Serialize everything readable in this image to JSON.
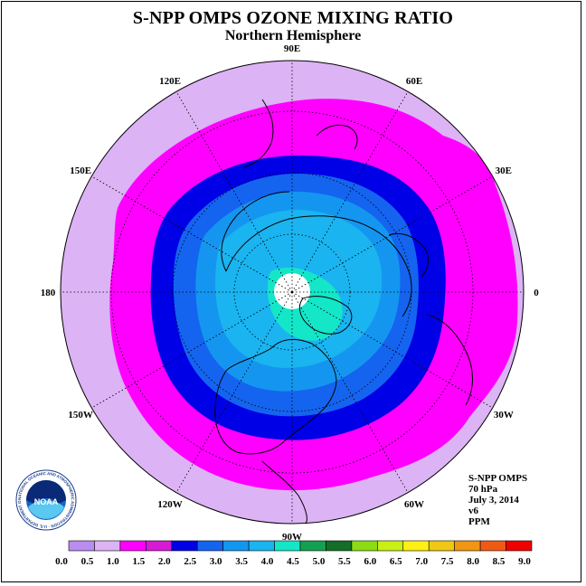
{
  "title": "S-NPP OMPS OZONE MIXING RATIO",
  "subtitle": "Northern Hemisphere",
  "longitude_labels": [
    {
      "text": "90E",
      "lon": 90
    },
    {
      "text": "60E",
      "lon": 60
    },
    {
      "text": "30E",
      "lon": 30
    },
    {
      "text": "0",
      "lon": 0
    },
    {
      "text": "30W",
      "lon": -30
    },
    {
      "text": "60W",
      "lon": -60
    },
    {
      "text": "90W",
      "lon": -90
    },
    {
      "text": "120W",
      "lon": -120
    },
    {
      "text": "150W",
      "lon": -150
    },
    {
      "text": "180",
      "lon": 180
    },
    {
      "text": "150E",
      "lon": 150
    },
    {
      "text": "120E",
      "lon": 120
    }
  ],
  "info": {
    "instrument": "S-NPP OMPS",
    "level": "70 hPa",
    "date": "July 3, 2014",
    "version": "v6",
    "units": "PPM"
  },
  "logo": {
    "text": "NOAA",
    "ring_text": "NATIONAL OCEANIC AND ATMOSPHERIC ADMINISTRATION · U.S. DEPARTMENT OF COMMERCE"
  },
  "colorbar": {
    "labels": [
      "0.0",
      "0.5",
      "1.0",
      "1.5",
      "2.0",
      "2.5",
      "3.0",
      "3.5",
      "4.0",
      "4.5",
      "5.0",
      "5.5",
      "6.0",
      "6.5",
      "7.0",
      "7.5",
      "8.0",
      "8.5",
      "9.0"
    ],
    "colors": [
      "#b98cf0",
      "#dcb3f5",
      "#ff00ff",
      "#d61ad6",
      "#0000e6",
      "#1464f0",
      "#1496f0",
      "#1ab4f0",
      "#14e6c8",
      "#14a050",
      "#146e28",
      "#8cdc14",
      "#c8f014",
      "#fff014",
      "#f0c814",
      "#f09614",
      "#f05a14",
      "#f00000",
      "#8c5a3c"
    ]
  },
  "colors": {
    "outer": "#dcb3f5",
    "magenta": "#ff00ff",
    "deep_blue": "#0000e6",
    "mid_blue": "#1464f0",
    "light_blue": "#1496f0",
    "cyan_blue": "#1ab4f0",
    "aqua": "#14e6c8",
    "pole_missing": "#ffffff"
  }
}
